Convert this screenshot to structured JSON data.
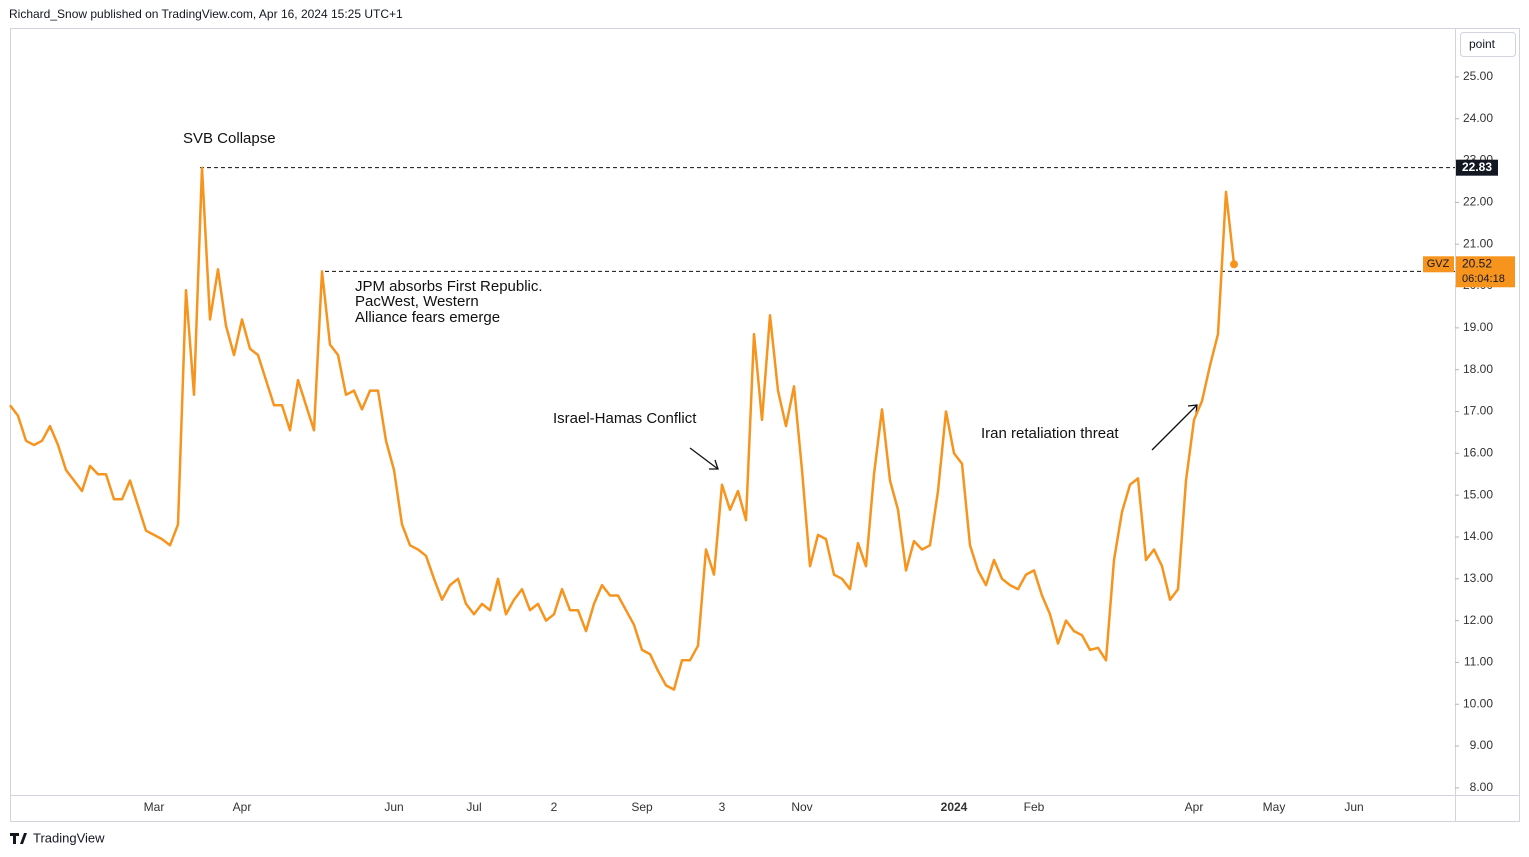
{
  "header": {
    "byline": "Richard_Snow published on TradingView.com, Apr 16, 2024 15:25 UTC+1",
    "unit_button": "point"
  },
  "footer": {
    "brand": "TradingView"
  },
  "chart_data": {
    "type": "line",
    "categories": [
      null,
      null,
      null,
      null,
      null,
      null,
      null,
      null,
      null,
      null,
      null,
      null,
      null,
      null,
      null,
      null,
      null,
      null,
      "Mar",
      null,
      null,
      null,
      null,
      null,
      null,
      null,
      null,
      null,
      null,
      "Apr",
      null,
      null,
      null,
      null,
      null,
      null,
      null,
      null,
      null,
      null,
      null,
      null,
      null,
      null,
      null,
      null,
      null,
      null,
      "Jun",
      null,
      null,
      null,
      null,
      null,
      null,
      null,
      null,
      null,
      "Jul",
      null,
      null,
      null,
      null,
      null,
      null,
      null,
      null,
      null,
      "2",
      null,
      null,
      null,
      null,
      null,
      null,
      null,
      null,
      null,
      null,
      "Sep",
      null,
      null,
      null,
      null,
      null,
      null,
      null,
      null,
      null,
      "3",
      null,
      null,
      null,
      null,
      null,
      null,
      null,
      null,
      null,
      "Nov",
      null,
      null,
      null,
      null,
      null,
      null,
      null,
      null,
      null,
      null,
      null,
      null,
      null,
      null,
      null,
      null,
      null,
      null,
      "2024",
      null,
      null,
      null,
      null,
      null,
      null,
      null,
      null,
      null,
      "Feb",
      null,
      null,
      null,
      null,
      null,
      null,
      null,
      null,
      null,
      null,
      null,
      null,
      null,
      null,
      null,
      null,
      null,
      null,
      null,
      "Apr",
      null,
      null,
      null,
      null,
      null,
      null,
      null,
      null,
      null,
      "May",
      null,
      null,
      null,
      null,
      null,
      null,
      null,
      null,
      null,
      "Jun",
      null,
      null
    ],
    "series": [
      {
        "name": "GVZ",
        "color": "#f7941d",
        "values": [
          17.15,
          16.9,
          16.3,
          16.2,
          16.3,
          16.65,
          16.2,
          15.6,
          15.35,
          15.1,
          15.7,
          15.5,
          15.5,
          14.9,
          14.9,
          15.35,
          14.75,
          14.15,
          14.05,
          13.95,
          13.8,
          14.3,
          19.9,
          17.4,
          22.83,
          19.2,
          20.4,
          19.05,
          18.35,
          19.2,
          18.5,
          18.35,
          17.75,
          17.15,
          17.15,
          16.55,
          17.75,
          17.15,
          16.55,
          20.35,
          18.6,
          18.35,
          17.4,
          17.5,
          17.05,
          17.5,
          17.5,
          16.3,
          15.6,
          14.3,
          13.8,
          13.7,
          13.55,
          13.0,
          12.5,
          12.85,
          13.0,
          12.4,
          12.15,
          12.4,
          12.25,
          13.0,
          12.15,
          12.5,
          12.75,
          12.25,
          12.4,
          12.0,
          12.15,
          12.75,
          12.25,
          12.25,
          11.75,
          12.4,
          12.85,
          12.6,
          12.6,
          12.25,
          11.9,
          11.3,
          11.2,
          10.8,
          10.45,
          10.35,
          11.05,
          11.05,
          11.4,
          13.7,
          13.1,
          15.25,
          14.65,
          15.1,
          14.4,
          18.85,
          16.8,
          19.3,
          17.5,
          16.65,
          17.6,
          15.6,
          13.3,
          14.05,
          13.95,
          13.1,
          13.0,
          12.75,
          13.85,
          13.3,
          15.5,
          17.05,
          15.35,
          14.65,
          13.2,
          13.9,
          13.7,
          13.8,
          15.1,
          17.0,
          16.0,
          15.75,
          13.8,
          13.2,
          12.85,
          13.45,
          13.0,
          12.85,
          12.75,
          13.1,
          13.2,
          12.6,
          12.15,
          11.45,
          12.0,
          11.75,
          11.65,
          11.3,
          11.35,
          11.05,
          13.45,
          14.6,
          15.25,
          15.4,
          13.45,
          13.7,
          13.3,
          12.5,
          12.75,
          15.35,
          16.8,
          17.25,
          18.1,
          18.85,
          22.25,
          20.52,
          null,
          null,
          null,
          null,
          null,
          null,
          null,
          null,
          null,
          null,
          null,
          null,
          null,
          null,
          null,
          null,
          null
        ]
      }
    ],
    "ylim": [
      7.83,
      26.17
    ],
    "yticks": [
      {
        "value": 8,
        "label": "8.00"
      },
      {
        "value": 9,
        "label": "9.00"
      },
      {
        "value": 10,
        "label": "10.00"
      },
      {
        "value": 11,
        "label": "11.00"
      },
      {
        "value": 12,
        "label": "12.00"
      },
      {
        "value": 13,
        "label": "13.00"
      },
      {
        "value": 14,
        "label": "14.00"
      },
      {
        "value": 15,
        "label": "15.00"
      },
      {
        "value": 16,
        "label": "16.00"
      },
      {
        "value": 17,
        "label": "17.00"
      },
      {
        "value": 18,
        "label": "18.00"
      },
      {
        "value": 19,
        "label": "19.00"
      },
      {
        "value": 20,
        "label": "20.00"
      },
      {
        "value": 21,
        "label": "21.00"
      },
      {
        "value": 22,
        "label": "22.00"
      },
      {
        "value": 23,
        "label": "23.00"
      },
      {
        "value": 24,
        "label": "24.00"
      },
      {
        "value": 25,
        "label": "25.00"
      }
    ],
    "grid": false,
    "levels": [
      22.83,
      20.35
    ],
    "last_price": 20.52,
    "countdown": "06:04:18",
    "annotations": [
      "SVB Collapse",
      "JPM absorbs First Republic.",
      "PacWest, Western",
      "Alliance fears emerge",
      "Israel-Hamas Conflict",
      "Iran retaliation threat"
    ]
  }
}
